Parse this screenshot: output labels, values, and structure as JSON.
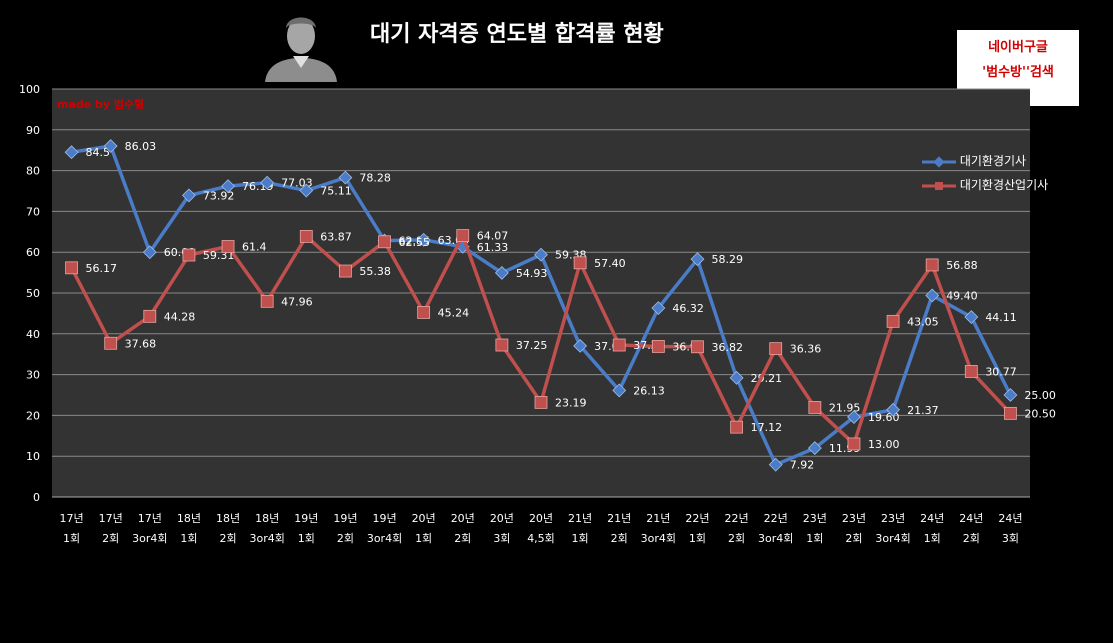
{
  "title": "대기 자격증 연도별 합격률 현황",
  "watermark": {
    "line1": "네이버구글",
    "line2": "'범수방''검색"
  },
  "made_by": "made by  범수형",
  "colors": {
    "series1": "#4a7cc7",
    "series2": "#c0504d",
    "plot_bg": "#333333",
    "grid": "#8a8a8a"
  },
  "chart_data": {
    "type": "line",
    "title": "대기 자격증 연도별 합격률 현황",
    "xlabel": "",
    "ylabel": "",
    "ylim": [
      0,
      100
    ],
    "yticks": [
      0,
      10,
      20,
      30,
      40,
      50,
      60,
      70,
      80,
      90,
      100
    ],
    "grid": true,
    "legend_position": "right",
    "categories": [
      [
        "17년",
        "1회"
      ],
      [
        "17년",
        "2회"
      ],
      [
        "17년",
        "3or4회"
      ],
      [
        "18년",
        "1회"
      ],
      [
        "18년",
        "2회"
      ],
      [
        "18년",
        "3or4회"
      ],
      [
        "19년",
        "1회"
      ],
      [
        "19년",
        "2회"
      ],
      [
        "19년",
        "3or4회"
      ],
      [
        "20년",
        "1회"
      ],
      [
        "20년",
        "2회"
      ],
      [
        "20년",
        "3회"
      ],
      [
        "20년",
        "4,5회"
      ],
      [
        "21년",
        "1회"
      ],
      [
        "21년",
        "2회"
      ],
      [
        "21년",
        "3or4회"
      ],
      [
        "22년",
        "1회"
      ],
      [
        "22년",
        "2회"
      ],
      [
        "22년",
        "3or4회"
      ],
      [
        "23년",
        "1회"
      ],
      [
        "23년",
        "2회"
      ],
      [
        "23년",
        "3or4회"
      ],
      [
        "24년",
        "1회"
      ],
      [
        "24년",
        "2회"
      ],
      [
        "24년",
        "3회"
      ]
    ],
    "series": [
      {
        "name": "대기환경기사",
        "values": [
          84.5,
          86.03,
          60.0,
          73.92,
          76.19,
          77.03,
          75.11,
          78.28,
          62.85,
          63.03,
          61.33,
          54.93,
          59.38,
          37.04,
          26.13,
          46.32,
          58.29,
          29.21,
          7.92,
          11.99,
          19.6,
          21.37,
          49.4,
          44.11,
          25.0
        ],
        "labels": [
          "84.5",
          "86.03",
          "60.00",
          "73.92",
          "76.19",
          "77.03",
          "75.11",
          "78.28",
          "62.85",
          "63.03",
          "61.33",
          "54.93",
          "59.38",
          "37.04",
          "26.13",
          "46.32",
          "58.29",
          "29.21",
          "7.92",
          "11.99",
          "19.60",
          "21.37",
          "49.40",
          "44.11",
          "25.00"
        ]
      },
      {
        "name": "대기환경산업기사",
        "values": [
          56.17,
          37.68,
          44.28,
          59.31,
          61.4,
          47.96,
          63.87,
          55.38,
          62.55,
          45.24,
          64.07,
          37.25,
          23.19,
          57.4,
          37.25,
          36.9,
          36.82,
          17.12,
          36.36,
          21.95,
          13.0,
          43.05,
          56.88,
          30.77,
          20.5
        ],
        "labels": [
          "56.17",
          "37.68",
          "44.28",
          "59.31",
          "61.4",
          "47.96",
          "63.87",
          "55.38",
          "62.55",
          "45.24",
          "64.07",
          "37.25",
          "23.19",
          "57.40",
          "37.25",
          "36.90",
          "36.82",
          "17.12",
          "36.36",
          "21.95",
          "13.00",
          "43.05",
          "56.88",
          "30.77",
          "20.50"
        ]
      }
    ]
  }
}
